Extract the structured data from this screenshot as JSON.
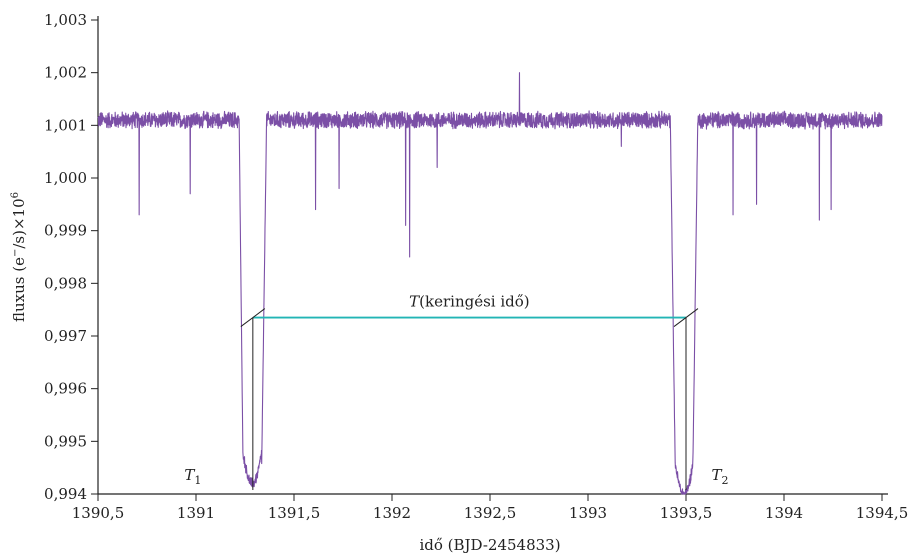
{
  "chart_data": {
    "type": "line",
    "xlabel": "idő (BJD-2454833)",
    "ylabel_main": "fluxus (e",
    "ylabel_sup1": "−",
    "ylabel_mid": "/s)×10",
    "ylabel_sup2": "6",
    "xlim": [
      1390.5,
      1394.5
    ],
    "ylim": [
      0.994,
      1.003
    ],
    "xticks": [
      1390.5,
      1391,
      1391.5,
      1392,
      1392.5,
      1393,
      1393.5,
      1394,
      1394.5
    ],
    "xtick_labels": [
      "1390,5",
      "1391",
      "1391,5",
      "1392",
      "1392,5",
      "1393",
      "1393,5",
      "1394",
      "1394,5"
    ],
    "yticks": [
      0.994,
      0.995,
      0.996,
      0.997,
      0.998,
      0.999,
      1.0,
      1.001,
      1.002,
      1.003
    ],
    "ytick_labels": [
      "0,994",
      "0,995",
      "0,996",
      "0,997",
      "0,998",
      "0,999",
      "1,000",
      "1,001",
      "1,002",
      "1,003"
    ],
    "grid": false,
    "series": [
      {
        "color": "#7b4fa6",
        "x_range": [
          1390.5,
          1394.5
        ],
        "baseline": 1.0011,
        "noise_amplitude": 0.00018,
        "transits": [
          {
            "ingress_start": 1391.22,
            "ingress_end": 1391.24,
            "egress_start": 1391.335,
            "egress_end": 1391.36,
            "min": 0.9942,
            "bottom": 0.9945
          },
          {
            "ingress_start": 1393.42,
            "ingress_end": 1393.445,
            "egress_start": 1393.535,
            "egress_end": 1393.56,
            "min": 0.994,
            "bottom": 0.9945
          }
        ],
        "spikes_down": [
          {
            "x": 1390.71,
            "y": 0.9993
          },
          {
            "x": 1390.97,
            "y": 0.9997
          },
          {
            "x": 1391.61,
            "y": 0.9994
          },
          {
            "x": 1391.73,
            "y": 0.9998
          },
          {
            "x": 1392.07,
            "y": 0.9991
          },
          {
            "x": 1392.09,
            "y": 0.9985
          },
          {
            "x": 1392.23,
            "y": 1.0002
          },
          {
            "x": 1393.17,
            "y": 1.0006
          },
          {
            "x": 1393.74,
            "y": 0.9993
          },
          {
            "x": 1393.86,
            "y": 0.9995
          },
          {
            "x": 1394.18,
            "y": 0.9992
          },
          {
            "x": 1394.24,
            "y": 0.9994
          }
        ],
        "spikes_up": [
          {
            "x": 1392.65,
            "y": 1.002
          }
        ]
      }
    ],
    "annotations": {
      "period_line": {
        "x_start": 1391.29,
        "x_end": 1393.5,
        "y": 0.99735,
        "color": "#22b5b5"
      },
      "period_label": {
        "italic_part": "T",
        "rest": "(keringési idő)"
      },
      "t1": {
        "letter": "T",
        "sub": "1",
        "x": 1391.29
      },
      "t2": {
        "letter": "T",
        "sub": "2",
        "x": 1393.5
      }
    }
  }
}
